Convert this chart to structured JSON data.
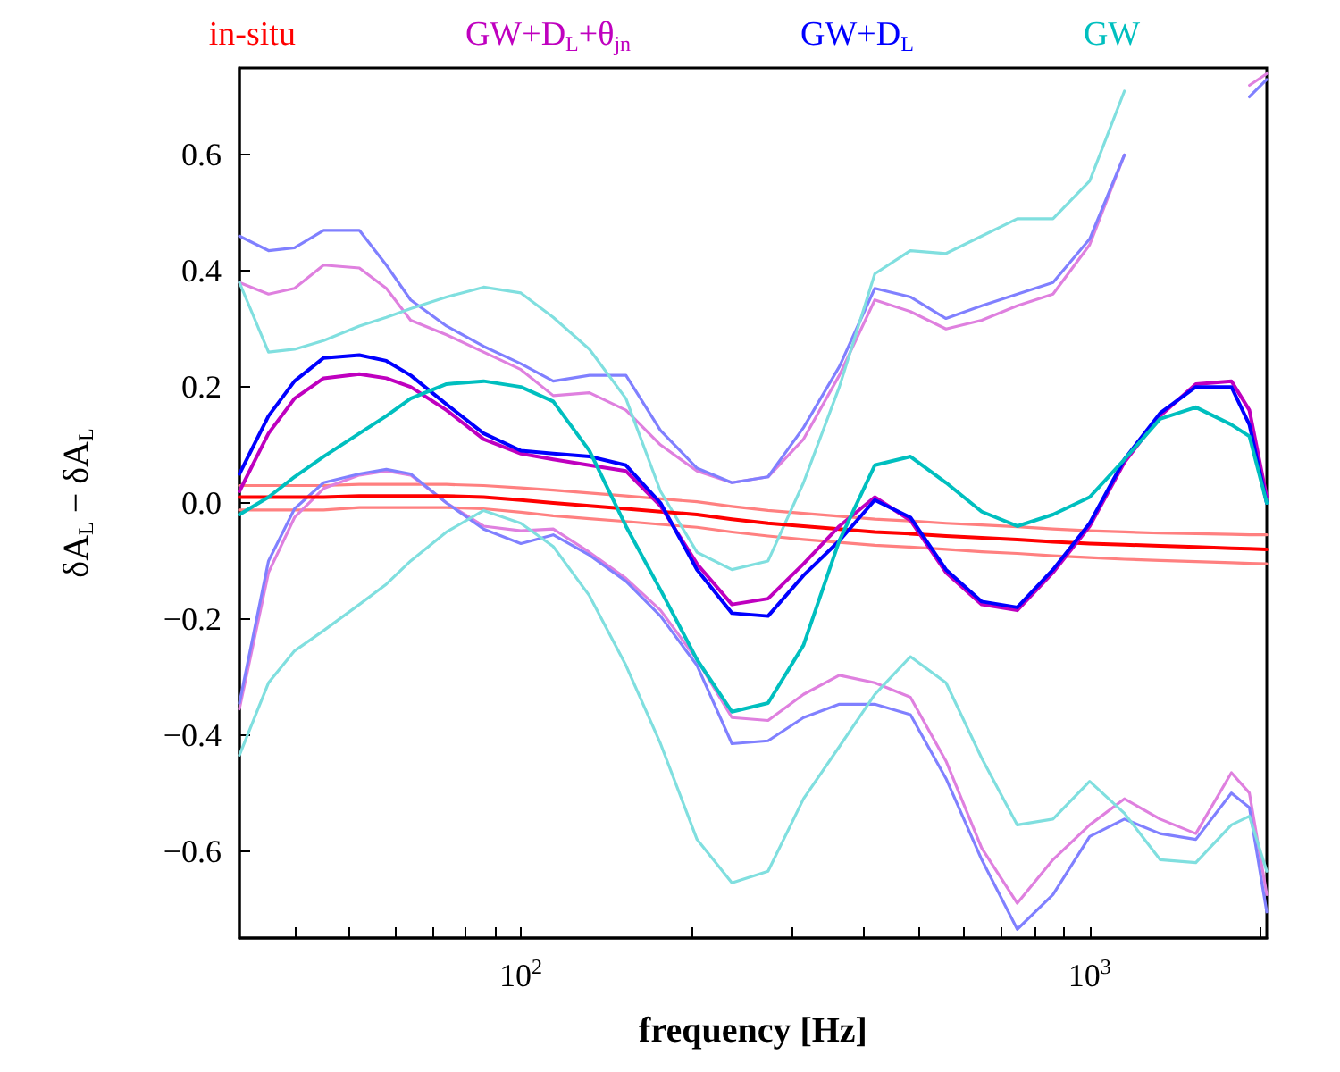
{
  "chart_data": {
    "type": "line",
    "xlabel": "frequency [Hz]",
    "ylabel": "δA$_{L}$ − δA$_{L}$",
    "log": "x",
    "grid": false,
    "legend": "top",
    "xlim": [
      32,
      2048
    ],
    "ylim": [
      -0.75,
      0.75
    ],
    "xticks": [
      {
        "value": 40,
        "label": null
      },
      {
        "value": 50,
        "label": null
      },
      {
        "value": 60,
        "label": null
      },
      {
        "value": 70,
        "label": null
      },
      {
        "value": 80,
        "label": null
      },
      {
        "value": 90,
        "label": null
      },
      {
        "value": 100,
        "label": "10$^{2}$"
      },
      {
        "value": 200,
        "label": null
      },
      {
        "value": 300,
        "label": null
      },
      {
        "value": 400,
        "label": null
      },
      {
        "value": 500,
        "label": null
      },
      {
        "value": 600,
        "label": null
      },
      {
        "value": 700,
        "label": null
      },
      {
        "value": 800,
        "label": null
      },
      {
        "value": 900,
        "label": null
      },
      {
        "value": 1000,
        "label": "10$^{3}$"
      },
      {
        "value": 2000,
        "label": null
      }
    ],
    "yticks": [
      {
        "value": -0.6,
        "label": "−0.6"
      },
      {
        "value": -0.4,
        "label": "−0.4"
      },
      {
        "value": -0.2,
        "label": "−0.2"
      },
      {
        "value": 0,
        "label": "0.0"
      },
      0.2,
      0.4,
      0.6
    ],
    "x": [
      32,
      36,
      40,
      45,
      52,
      58,
      64,
      74,
      86,
      100,
      114,
      132,
      153,
      176,
      204,
      235,
      272,
      314,
      363,
      419,
      484,
      559,
      646,
      746,
      862,
      1000,
      1151,
      1330,
      1537,
      1775,
      1909,
      2048
    ],
    "series": [
      {
        "color": "#ff8080",
        "values": [
          0.03,
          0.03,
          0.03,
          0.03,
          0.032,
          0.032,
          0.032,
          0.032,
          0.03,
          0.026,
          0.022,
          0.017,
          0.012,
          0.007,
          0.002,
          -0.006,
          -0.013,
          -0.018,
          -0.023,
          -0.028,
          -0.031,
          -0.035,
          -0.038,
          -0.041,
          -0.045,
          -0.048,
          -0.05,
          -0.052,
          -0.053,
          -0.054,
          -0.055,
          -0.055
        ]
      },
      {
        "color": "#ff8080",
        "values": [
          -0.012,
          -0.012,
          -0.012,
          -0.012,
          -0.008,
          -0.008,
          -0.008,
          -0.008,
          -0.01,
          -0.016,
          -0.022,
          -0.027,
          -0.032,
          -0.037,
          -0.042,
          -0.05,
          -0.057,
          -0.063,
          -0.068,
          -0.073,
          -0.076,
          -0.08,
          -0.084,
          -0.087,
          -0.091,
          -0.094,
          -0.097,
          -0.099,
          -0.101,
          -0.103,
          -0.104,
          -0.105
        ]
      },
      {
        "color": "#df80df",
        "x": [
          32,
          36,
          40,
          45,
          52,
          58,
          64,
          74,
          86,
          100,
          114,
          132,
          153,
          176,
          204,
          235,
          272,
          314,
          363,
          419,
          484,
          559,
          646,
          746,
          862,
          1000,
          1151
        ],
        "values": [
          0.38,
          0.36,
          0.37,
          0.41,
          0.405,
          0.37,
          0.315,
          0.29,
          0.26,
          0.23,
          0.185,
          0.19,
          0.16,
          0.1,
          0.055,
          0.035,
          0.045,
          0.11,
          0.22,
          0.35,
          0.33,
          0.3,
          0.315,
          0.34,
          0.36,
          0.445,
          0.6
        ]
      },
      {
        "color": "#df80df",
        "x": [
          1909,
          2048
        ],
        "values": [
          0.72,
          0.74
        ]
      },
      {
        "color": "#df80df",
        "values": [
          -0.355,
          -0.12,
          -0.025,
          0.025,
          0.048,
          0.055,
          0.048,
          0.0,
          -0.04,
          -0.048,
          -0.045,
          -0.085,
          -0.13,
          -0.185,
          -0.27,
          -0.37,
          -0.375,
          -0.33,
          -0.297,
          -0.31,
          -0.335,
          -0.445,
          -0.595,
          -0.69,
          -0.615,
          -0.555,
          -0.51,
          -0.545,
          -0.57,
          -0.465,
          -0.5,
          -0.675
        ]
      },
      {
        "color": "#8080ff",
        "x": [
          32,
          36,
          40,
          45,
          52,
          58,
          64,
          74,
          86,
          100,
          114,
          132,
          153,
          176,
          204,
          235,
          272,
          314,
          363,
          419,
          484,
          559,
          646,
          746,
          862,
          1000,
          1151
        ],
        "values": [
          0.46,
          0.435,
          0.44,
          0.47,
          0.47,
          0.41,
          0.35,
          0.305,
          0.27,
          0.24,
          0.21,
          0.22,
          0.22,
          0.125,
          0.06,
          0.035,
          0.045,
          0.13,
          0.235,
          0.37,
          0.355,
          0.318,
          0.34,
          0.36,
          0.38,
          0.455,
          0.6
        ]
      },
      {
        "color": "#8080ff",
        "x": [
          1909,
          2048
        ],
        "values": [
          0.7,
          0.73
        ]
      },
      {
        "color": "#8080ff",
        "values": [
          -0.345,
          -0.1,
          -0.01,
          0.035,
          0.05,
          0.058,
          0.05,
          0.0,
          -0.045,
          -0.07,
          -0.055,
          -0.09,
          -0.135,
          -0.195,
          -0.28,
          -0.415,
          -0.41,
          -0.37,
          -0.347,
          -0.347,
          -0.365,
          -0.475,
          -0.615,
          -0.735,
          -0.675,
          -0.575,
          -0.545,
          -0.57,
          -0.58,
          -0.5,
          -0.525,
          -0.705
        ]
      },
      {
        "color": "#80dfdf",
        "x": [
          32,
          36,
          40,
          45,
          52,
          58,
          64,
          74,
          86,
          100,
          114,
          132,
          153,
          176,
          204,
          235,
          272,
          314,
          363,
          419,
          484,
          559,
          646,
          746,
          862,
          1000,
          1151
        ],
        "values": [
          0.38,
          0.26,
          0.265,
          0.28,
          0.305,
          0.32,
          0.335,
          0.355,
          0.372,
          0.362,
          0.32,
          0.265,
          0.18,
          0.02,
          -0.085,
          -0.115,
          -0.1,
          0.035,
          0.2,
          0.395,
          0.435,
          0.43,
          0.46,
          0.49,
          0.49,
          0.555,
          0.71
        ]
      },
      {
        "color": "#80dfdf",
        "values": [
          -0.435,
          -0.31,
          -0.255,
          -0.22,
          -0.175,
          -0.14,
          -0.1,
          -0.05,
          -0.013,
          -0.035,
          -0.075,
          -0.16,
          -0.28,
          -0.415,
          -0.58,
          -0.655,
          -0.635,
          -0.51,
          -0.42,
          -0.33,
          -0.265,
          -0.31,
          -0.44,
          -0.555,
          -0.545,
          -0.48,
          -0.535,
          -0.615,
          -0.62,
          -0.555,
          -0.54,
          -0.635
        ]
      },
      {
        "name": "in-situ",
        "color": "#ff0000",
        "values": [
          0.01,
          0.01,
          0.01,
          0.01,
          0.012,
          0.012,
          0.012,
          0.012,
          0.01,
          0.005,
          0.0,
          -0.005,
          -0.01,
          -0.015,
          -0.02,
          -0.028,
          -0.035,
          -0.04,
          -0.045,
          -0.05,
          -0.053,
          -0.057,
          -0.06,
          -0.063,
          -0.067,
          -0.07,
          -0.072,
          -0.074,
          -0.076,
          -0.078,
          -0.079,
          -0.08
        ]
      },
      {
        "name": "GW+D$_{L}$+θ$_{jn}$",
        "color": "#bf00bf",
        "values": [
          0.02,
          0.12,
          0.18,
          0.215,
          0.222,
          0.215,
          0.2,
          0.16,
          0.11,
          0.085,
          0.075,
          0.065,
          0.055,
          -0.005,
          -0.105,
          -0.175,
          -0.165,
          -0.105,
          -0.04,
          0.01,
          -0.03,
          -0.12,
          -0.175,
          -0.185,
          -0.12,
          -0.04,
          0.07,
          0.15,
          0.205,
          0.21,
          0.16,
          0.01
        ]
      },
      {
        "name": "GW+D$_{L}$",
        "color": "#0000ff",
        "values": [
          0.05,
          0.15,
          0.21,
          0.25,
          0.255,
          0.245,
          0.22,
          0.17,
          0.12,
          0.09,
          0.085,
          0.08,
          0.065,
          0.0,
          -0.115,
          -0.19,
          -0.195,
          -0.125,
          -0.065,
          0.005,
          -0.025,
          -0.115,
          -0.17,
          -0.18,
          -0.115,
          -0.035,
          0.075,
          0.155,
          0.2,
          0.2,
          0.135,
          0.0
        ]
      },
      {
        "name": "GW",
        "color": "#00bfbf",
        "values": [
          -0.02,
          0.01,
          0.045,
          0.08,
          0.12,
          0.15,
          0.18,
          0.205,
          0.21,
          0.2,
          0.175,
          0.09,
          -0.04,
          -0.15,
          -0.27,
          -0.36,
          -0.345,
          -0.245,
          -0.065,
          0.065,
          0.08,
          0.035,
          -0.015,
          -0.04,
          -0.02,
          0.01,
          0.075,
          0.145,
          0.165,
          0.135,
          0.115,
          0.0
        ]
      }
    ]
  }
}
